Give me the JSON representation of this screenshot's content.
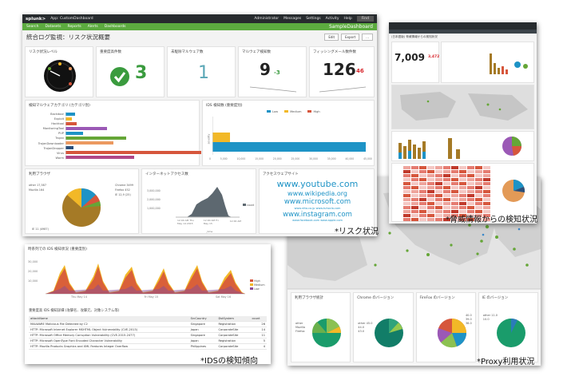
{
  "captions": {
    "risk": "*リスク状況",
    "threat": "*脅威情報からの検知状況",
    "ids": "*IDSの検知傾向",
    "proxy": "*Proxy利用状況"
  },
  "risk": {
    "topbar": {
      "logo": "splunk>",
      "app": "App: CustomDashboard",
      "menus": [
        "Administrator",
        "Messages",
        "Settings",
        "Activity",
        "Help"
      ],
      "find": "Find"
    },
    "appnav": [
      "Search",
      "Datasets",
      "Reports",
      "Alerts",
      "Dashboards"
    ],
    "app_name": "SampleDashboard",
    "title": "統合ログ監視：リスク状況概要",
    "buttons": [
      "Edit",
      "Export",
      "..."
    ],
    "kpis": [
      {
        "title": "リスク状況レベル"
      },
      {
        "title": "重要度高件数",
        "value": "3",
        "color": "#3a9b3e"
      },
      {
        "title": "未駆除マルウェア数",
        "value": "1",
        "color": "#5aa7b6"
      },
      {
        "title": "マルウェア検知数",
        "value": "9",
        "delta": "-3",
        "color": "#222",
        "delta_color": "#3a9b3e"
      },
      {
        "title": "フィッシングメール数件数",
        "value": "126",
        "delta": "46",
        "color": "#222",
        "delta_color": "#d8272d"
      }
    ],
    "malware_panel": {
      "title": "検知マルウェアカテゴリ (カテゴリ別)",
      "categories": [
        "Backdoor",
        "Exploit",
        "Hacktool",
        "MonitoringTool",
        "PUP",
        "Trojan",
        "TrojanDownloader",
        "TrojanDropper",
        "Virus",
        "Worm"
      ]
    },
    "ids_panel": {
      "title": "IDS 検知数 (重要度別)",
      "legend": [
        "Low",
        "Medium",
        "High"
      ],
      "ylabel": "severity",
      "xticks": [
        "0",
        "5,000",
        "10,000",
        "15,000",
        "20,000",
        "25,000",
        "30,000",
        "35,000",
        "40,000",
        "45,000"
      ]
    },
    "browser_panel": {
      "title": "利用ブラウザ",
      "labels": [
        "other 17,587",
        "Mozilla 164",
        "Chrome 3499",
        "Firefox 452",
        "IE 12,9 (25)",
        "IE 11 (4987)"
      ]
    },
    "access_panel": {
      "title": "インターネットアクセス数",
      "yticks": [
        "3,000,000",
        "2,000,000",
        "1,000,000"
      ],
      "legend": "count",
      "xlabels": [
        "12:00 AM Thu May 14 2015",
        "12:00 AM Fri May 15",
        "12:00 AM"
      ],
      "xtitle": "_time"
    },
    "site_panel": {
      "title": "アクセスウェブサイト",
      "sites": [
        "www.youtube.com",
        "www.wikipedia.org",
        "www.microsoft.com",
        "www.ntto.co.jp www.tuhocla.com",
        "www.instagram.com",
        "www.facebook.com www.apple.com"
      ]
    }
  },
  "threat": {
    "title": "(日本語版) 脅威情報からの検知状況",
    "value": "7,009",
    "delta": "3,472",
    "delta_color": "#d8272d"
  },
  "ids": {
    "title": "時系列での IDS 検知状況 (重要度別)",
    "yticks": [
      "30,000",
      "20,000",
      "10,000"
    ],
    "xlabels": [
      "Thu May 14",
      "Fri May 15",
      "Sat May 16"
    ],
    "legend": [
      "High",
      "Medium",
      "Low"
    ],
    "table_title": "重要度高 IDS 検知詳細 (攻撃名、攻撃元、対象システム等)",
    "columns": [
      "attackName",
      "SrcCountry",
      "DstSystem",
      "count"
    ],
    "rows": [
      [
        "MALWARE Malicious File Detected by C2",
        "Singapore",
        "Registration",
        "26"
      ],
      [
        "HTTP: Microsoft Internet Explorer MSHTML Object Vulnerability (CVE-2013)",
        "Japan",
        "CorporateSite",
        "14"
      ],
      [
        "HTTP: Microsoft Office Memory Corruption Vulnerability (CVE-2015-2477)",
        "Singapore",
        "CorporateSite",
        "11"
      ],
      [
        "HTTP: Microsoft OpenType Font Encoded Character Vulnerability",
        "Japan",
        "Registration",
        "5"
      ],
      [
        "HTTP: Mozilla Products Graphics and XML Features Integer Overflow",
        "Philippines",
        "CorporateSite",
        "4"
      ]
    ]
  },
  "proxy": {
    "panels": [
      {
        "title": "利用ブラウザ統計",
        "labels": [
          "other",
          "Mozilla",
          "Firefox",
          "IE",
          "Chrome",
          "Safari"
        ]
      },
      {
        "title": "Chrome のバージョン",
        "labels": [
          "other 45.0",
          "44.0",
          "43.0",
          "42.0",
          "41.0",
          "40.0"
        ]
      },
      {
        "title": "FireFox のバージョン",
        "labels": [
          "40.0",
          "39.0",
          "38.0",
          "37.0",
          "36.0",
          "35.0"
        ]
      },
      {
        "title": "IE のバージョン",
        "labels": [
          "other 11.0",
          "10.0",
          "9.0",
          "8.0",
          "7.0"
        ]
      }
    ]
  },
  "colors": {
    "splunk_green": "#5cab3f",
    "dark_bar": "#272b2e",
    "bar_blue": "#1e93c6",
    "bar_yellow": "#f2b827",
    "bar_red": "#d6563c",
    "pie_olive": "#a57a26",
    "map_dots": "#65a637"
  }
}
